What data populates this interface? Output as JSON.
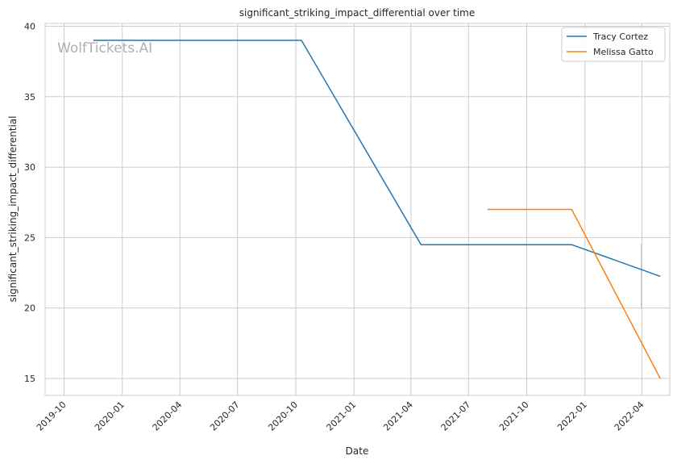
{
  "chart_data": {
    "type": "line",
    "title": "significant_striking_impact_differential over time",
    "xlabel": "Date",
    "ylabel": "significant_striking_impact_differential",
    "watermark": "WolfTickets.AI",
    "x_ticks": [
      "2019-10",
      "2020-01",
      "2020-04",
      "2020-07",
      "2020-10",
      "2021-01",
      "2021-04",
      "2021-07",
      "2021-10",
      "2022-01",
      "2022-04"
    ],
    "y_ticks": [
      15,
      20,
      25,
      30,
      35,
      40
    ],
    "xlim": [
      "2019-09-01",
      "2022-05-15"
    ],
    "ylim": [
      13.8,
      40.2
    ],
    "grid": true,
    "legend_position": "top-right",
    "series": [
      {
        "name": "Tracy Cortez",
        "color": "#1f77b4",
        "points": [
          {
            "x": "2019-11-16",
            "y": 39.0
          },
          {
            "x": "2020-10-10",
            "y": 39.0
          },
          {
            "x": "2021-04-17",
            "y": 24.5
          },
          {
            "x": "2021-12-11",
            "y": 24.5
          },
          {
            "x": "2022-04-30",
            "y": 22.25
          }
        ]
      },
      {
        "name": "Melissa Gatto",
        "color": "#ff7f0e",
        "points": [
          {
            "x": "2021-07-31",
            "y": 27.0
          },
          {
            "x": "2021-12-11",
            "y": 27.0
          },
          {
            "x": "2022-04-30",
            "y": 15.0
          }
        ]
      }
    ]
  }
}
